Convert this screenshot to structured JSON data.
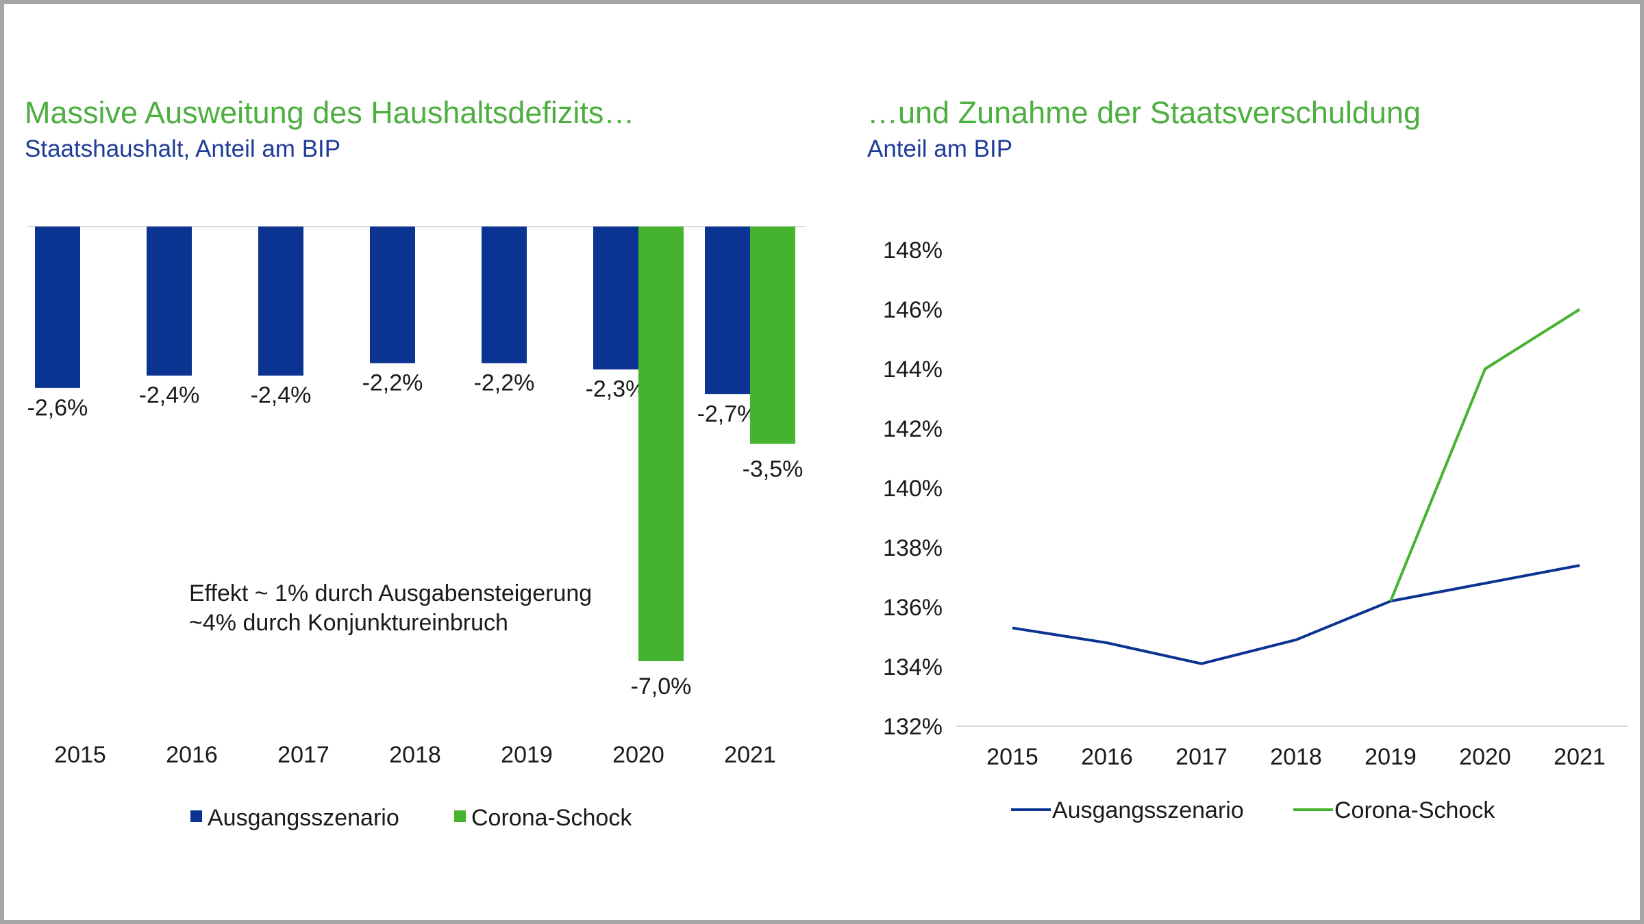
{
  "left_chart": {
    "title": "Massive Ausweitung des Haushaltsdefizits…",
    "subtitle": "Staatshaushalt, Anteil am BIP",
    "annotation_line1": "Effekt ~ 1% durch Ausgabensteigerung",
    "annotation_line2": "~4% durch Konjunktureinbruch"
  },
  "right_chart": {
    "title": "…und Zunahme der Staatsverschuldung",
    "subtitle": "Anteil am BIP"
  },
  "colors": {
    "ausgangsszenario": "#0b3391",
    "corona": "#46b32f",
    "title": "#4caf3f",
    "subtitle": "#1f3c99"
  },
  "chart_data": [
    {
      "type": "bar",
      "title": "Massive Ausweitung des Haushaltsdefizits…",
      "subtitle": "Staatshaushalt, Anteil am BIP",
      "categories": [
        "2015",
        "2016",
        "2017",
        "2018",
        "2019",
        "2020",
        "2021"
      ],
      "series": [
        {
          "name": "Ausgangsszenario",
          "values": [
            -2.6,
            -2.4,
            -2.4,
            -2.2,
            -2.2,
            -2.3,
            -2.7
          ],
          "labels": [
            "-2,6%",
            "-2,4%",
            "-2,4%",
            "-2,2%",
            "-2,2%",
            "-2,3%",
            "-2,7%"
          ]
        },
        {
          "name": "Corona-Schock",
          "values": [
            null,
            null,
            null,
            null,
            null,
            -7.0,
            -3.5
          ],
          "labels": [
            "",
            "",
            "",
            "",
            "",
            "-7,0%",
            "-3,5%"
          ]
        }
      ],
      "ylim": [
        -7.0,
        0
      ],
      "legend": "bottom"
    },
    {
      "type": "line",
      "title": "…und Zunahme der Staatsverschuldung",
      "subtitle": "Anteil am BIP",
      "x": [
        "2015",
        "2016",
        "2017",
        "2018",
        "2019",
        "2020",
        "2021"
      ],
      "series": [
        {
          "name": "Ausgangsszenario",
          "values": [
            135.3,
            134.8,
            134.1,
            134.9,
            136.2,
            136.8,
            137.4
          ]
        },
        {
          "name": "Corona-Schock",
          "values": [
            null,
            null,
            null,
            null,
            136.2,
            144.0,
            146.0
          ]
        }
      ],
      "yticks": [
        "132%",
        "134%",
        "136%",
        "138%",
        "140%",
        "142%",
        "144%",
        "146%",
        "148%"
      ],
      "ylim": [
        132,
        148
      ],
      "legend": "bottom"
    }
  ]
}
